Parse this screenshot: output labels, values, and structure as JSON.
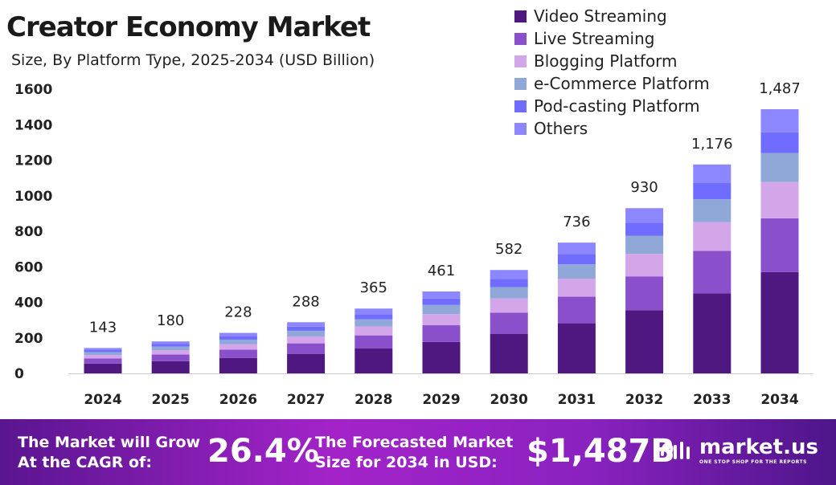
{
  "header": {
    "title": "Creator Economy Market",
    "subtitle": "Size, By Platform Type, 2025-2034 (USD Billion)"
  },
  "chart_data": {
    "type": "bar",
    "stacked": true,
    "title": "Creator Economy Market",
    "subtitle": "Size, By Platform Type, 2025-2034 (USD Billion)",
    "categories": [
      "2024",
      "2025",
      "2026",
      "2027",
      "2028",
      "2029",
      "2030",
      "2031",
      "2032",
      "2033",
      "2034"
    ],
    "totals": [
      143,
      180,
      228,
      288,
      365,
      461,
      582,
      736,
      930,
      1176,
      1487
    ],
    "total_labels": [
      "143",
      "180",
      "228",
      "288",
      "365",
      "461",
      "582",
      "736",
      "930",
      "1,176",
      "1,487"
    ],
    "series": [
      {
        "name": "Video Streaming",
        "color": "#4f1780",
        "values": [
          55,
          69,
          87,
          110,
          140,
          177,
          223,
          282,
          356,
          450,
          570
        ]
      },
      {
        "name": "Live Streaming",
        "color": "#8a4fcb",
        "values": [
          29,
          37,
          47,
          59,
          74,
          94,
          119,
          150,
          190,
          240,
          303
        ]
      },
      {
        "name": "Blogging Platform",
        "color": "#d3a6ea",
        "values": [
          20,
          25,
          31,
          39,
          50,
          63,
          80,
          101,
          127,
          161,
          204
        ]
      },
      {
        "name": "e-Commerce Platform",
        "color": "#8fa8d8",
        "values": [
          16,
          20,
          25,
          32,
          40,
          51,
          64,
          81,
          102,
          129,
          163
        ]
      },
      {
        "name": "Pod-casting Platform",
        "color": "#6f6cff",
        "values": [
          11,
          14,
          18,
          23,
          29,
          36,
          46,
          58,
          73,
          93,
          117
        ]
      },
      {
        "name": "Others",
        "color": "#8c87ff",
        "values": [
          12,
          15,
          20,
          25,
          32,
          40,
          50,
          64,
          82,
          103,
          130
        ]
      }
    ],
    "yticks": [
      "0",
      "200",
      "400",
      "600",
      "800",
      "1000",
      "1200",
      "1400",
      "1600"
    ],
    "ylim": [
      0,
      1600
    ],
    "grid": false,
    "legend": "top-right"
  },
  "footer": {
    "cagr_text": "The Market will Grow At the CAGR of:",
    "cagr_value": "26.4%",
    "forecast_text": "The Forecasted Market Size for 2034 in USD:",
    "forecast_value": "$1,487B",
    "brand": "market.us",
    "brand_tagline": "ONE STOP SHOP FOR THE REPORTS"
  }
}
